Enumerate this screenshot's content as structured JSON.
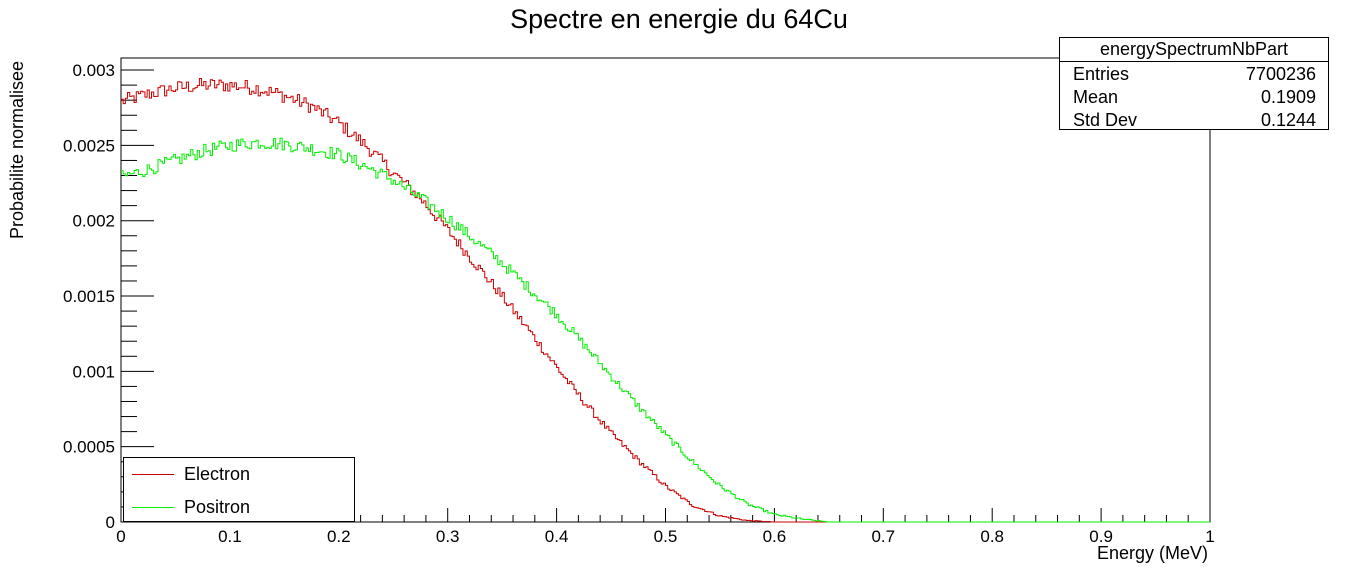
{
  "chart_data": {
    "type": "line",
    "title": "Spectre en energie du 64Cu",
    "xlabel": "Energy (MeV)",
    "ylabel": "Probabilite normalisee",
    "xlim": [
      0,
      1
    ],
    "ylim": [
      0,
      0.00308
    ],
    "x_ticks": [
      "0",
      "0.1",
      "0.2",
      "0.3",
      "0.4",
      "0.5",
      "0.6",
      "0.7",
      "0.8",
      "0.9",
      "1"
    ],
    "y_ticks": [
      "0",
      "0.0005",
      "0.001",
      "0.0015",
      "0.002",
      "0.0025",
      "0.003"
    ],
    "grid": false,
    "legend_position": "bottom-left",
    "series": [
      {
        "name": "Electron",
        "color": "#cc0000",
        "x": [
          0.0,
          0.025,
          0.05,
          0.075,
          0.1,
          0.125,
          0.15,
          0.175,
          0.2,
          0.225,
          0.25,
          0.275,
          0.3,
          0.325,
          0.35,
          0.375,
          0.4,
          0.425,
          0.45,
          0.475,
          0.5,
          0.525,
          0.55,
          0.575,
          0.6,
          0.65,
          1.0
        ],
        "y": [
          0.00279,
          0.00284,
          0.00288,
          0.0029,
          0.0029,
          0.00288,
          0.00283,
          0.00276,
          0.00265,
          0.0025,
          0.00232,
          0.00215,
          0.00194,
          0.00172,
          0.0015,
          0.00127,
          0.00103,
          0.0008,
          0.00059,
          0.00041,
          0.00024,
          0.00011,
          4e-05,
          1e-05,
          0.0,
          0.0,
          0.0
        ]
      },
      {
        "name": "Positron",
        "color": "#00ee00",
        "x": [
          0.0,
          0.025,
          0.05,
          0.075,
          0.1,
          0.125,
          0.15,
          0.175,
          0.2,
          0.225,
          0.25,
          0.275,
          0.3,
          0.325,
          0.35,
          0.375,
          0.4,
          0.425,
          0.45,
          0.475,
          0.5,
          0.525,
          0.55,
          0.575,
          0.6,
          0.625,
          0.65,
          0.7,
          1.0
        ],
        "y": [
          0.00229,
          0.00234,
          0.0024,
          0.00246,
          0.0025,
          0.00252,
          0.00251,
          0.00248,
          0.00244,
          0.00236,
          0.00227,
          0.00215,
          0.00202,
          0.00187,
          0.00172,
          0.00155,
          0.00138,
          0.00118,
          0.00097,
          0.00077,
          0.00058,
          0.0004,
          0.00024,
          0.00012,
          5e-05,
          2e-05,
          0.0,
          0.0,
          0.0
        ]
      }
    ]
  },
  "stats": {
    "title": "energySpectrumNbPart",
    "entries_label": "Entries",
    "entries_value": "7700236",
    "mean_label": "Mean",
    "mean_value": "0.1909",
    "stddev_label": "Std Dev",
    "stddev_value": "0.1244"
  },
  "legend": {
    "electron_label": "Electron",
    "positron_label": "Positron"
  }
}
